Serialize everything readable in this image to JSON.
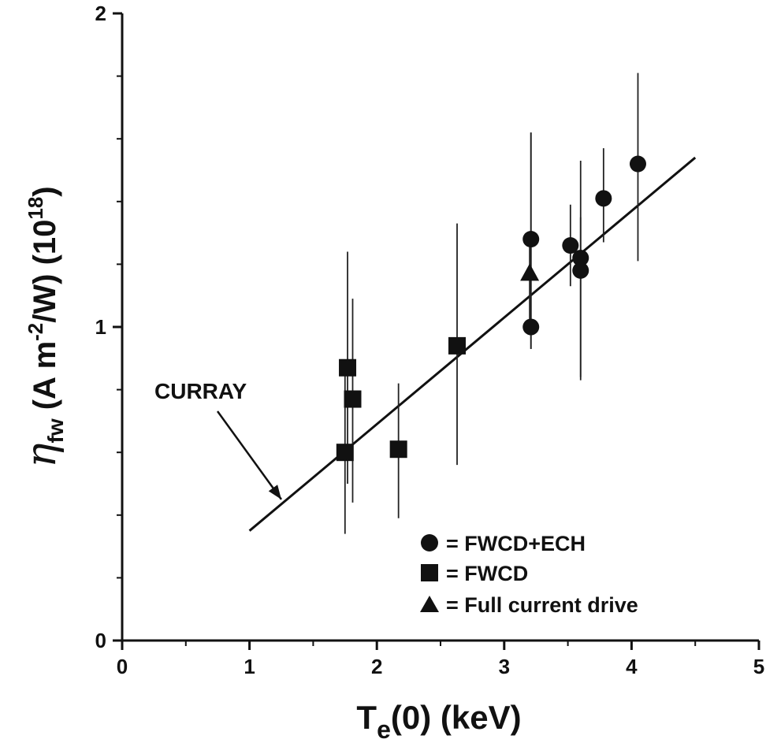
{
  "chart_data": {
    "type": "scatter",
    "xlabel_main": "T",
    "xlabel_sub": "e",
    "xlabel_rest": "(0) (keV)",
    "ylabel_eta": "η",
    "ylabel_sub": "fw",
    "ylabel_a": " (A m",
    "ylabel_exp": "-2",
    "ylabel_b": "/W) (10",
    "ylabel_exp2": "18",
    "ylabel_c": ")",
    "xlim": [
      0,
      5
    ],
    "ylim": [
      0,
      2
    ],
    "x_ticks": [
      "0",
      "1",
      "2",
      "3",
      "4",
      "5"
    ],
    "y_ticks": [
      "0",
      "1",
      "2"
    ],
    "legend": [
      {
        "marker": "circle",
        "label": "= FWCD+ECH"
      },
      {
        "marker": "square",
        "label": "= FWCD"
      },
      {
        "marker": "triangle",
        "label": "= Full current drive"
      }
    ],
    "series": [
      {
        "name": "FWCD+ECH",
        "marker": "circle",
        "points": [
          {
            "x": 3.21,
            "y": 1.28,
            "ylo": 0.93,
            "yhi": 1.62
          },
          {
            "x": 3.21,
            "y": 1.0,
            "ylo": 0.93,
            "yhi": 1.62
          },
          {
            "x": 3.52,
            "y": 1.26,
            "ylo": 1.13,
            "yhi": 1.39
          },
          {
            "x": 3.6,
            "y": 1.22,
            "ylo": 0.83,
            "yhi": 1.53
          },
          {
            "x": 3.6,
            "y": 1.18,
            "ylo": 0.84,
            "yhi": 1.35
          },
          {
            "x": 3.78,
            "y": 1.41,
            "ylo": 1.27,
            "yhi": 1.57
          },
          {
            "x": 4.05,
            "y": 1.52,
            "ylo": 1.21,
            "yhi": 1.81
          }
        ]
      },
      {
        "name": "FWCD",
        "marker": "square",
        "points": [
          {
            "x": 1.77,
            "y": 0.87,
            "ylo": 0.5,
            "yhi": 1.24
          },
          {
            "x": 1.81,
            "y": 0.77,
            "ylo": 0.44,
            "yhi": 1.09
          },
          {
            "x": 1.75,
            "y": 0.6,
            "ylo": 0.34,
            "yhi": 0.87
          },
          {
            "x": 2.17,
            "y": 0.61,
            "ylo": 0.39,
            "yhi": 0.82
          },
          {
            "x": 2.63,
            "y": 0.94,
            "ylo": 0.56,
            "yhi": 1.33
          }
        ]
      },
      {
        "name": "Full current drive",
        "marker": "triangle",
        "points": [
          {
            "x": 3.2,
            "y": 1.17,
            "ylo": 1.0,
            "yhi": 1.3
          }
        ]
      }
    ],
    "curve": {
      "label": "CURRAY",
      "x": [
        1.0,
        4.5
      ],
      "y": [
        0.35,
        1.54
      ]
    },
    "annotation": {
      "text": "CURRAY",
      "arrow_to": {
        "x": 1.25,
        "y": 0.45
      }
    },
    "grid": false
  }
}
